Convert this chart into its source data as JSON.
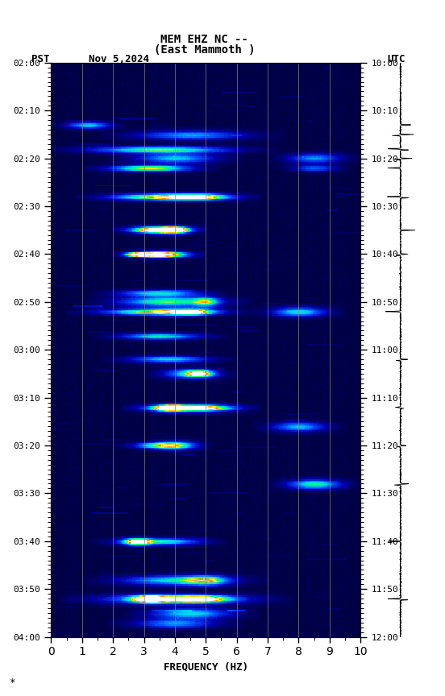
{
  "title_line1": "MEM EHZ NC --",
  "title_line2": "(East Mammoth )",
  "left_label": "PST",
  "date_label": "Nov 5,2024",
  "right_label": "UTC",
  "xlabel": "FREQUENCY (HZ)",
  "x_min": 0,
  "x_max": 10,
  "y_label_left": [
    "02:00",
    "02:10",
    "02:20",
    "02:30",
    "02:40",
    "02:50",
    "03:00",
    "03:10",
    "03:20",
    "03:30",
    "03:40",
    "03:50"
  ],
  "y_label_right": [
    "10:00",
    "10:10",
    "10:20",
    "10:30",
    "10:40",
    "10:50",
    "11:00",
    "11:10",
    "11:20",
    "11:30",
    "11:40",
    "11:50"
  ],
  "vertical_lines_x": [
    1,
    2,
    3,
    4,
    5,
    6,
    7,
    8,
    9
  ],
  "fig_width": 5.52,
  "fig_height": 8.64,
  "dpi": 100,
  "seed": 42
}
